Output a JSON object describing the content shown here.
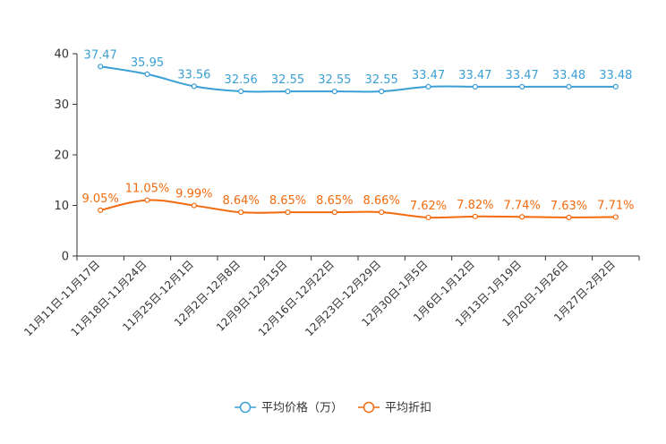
{
  "chart_data": {
    "type": "line",
    "categories": [
      "11月11日-11月17日",
      "11月18日-11月24日",
      "11月25日-12月1日",
      "12月2日-12月8日",
      "12月9日-12月15日",
      "12月16日-12月22日",
      "12月23日-12月29日",
      "12月30日-1月5日",
      "1月6日-1月12日",
      "1月13日-1月19日",
      "1月20日-1月26日",
      "1月27日-2月2日"
    ],
    "series": [
      {
        "name": "平均价格（万）",
        "color": "#3a9fd4",
        "values": [
          37.47,
          35.95,
          33.56,
          32.56,
          32.55,
          32.55,
          32.55,
          33.47,
          33.47,
          33.47,
          33.48,
          33.48
        ],
        "labels": [
          "37.47",
          "35.95",
          "33.56",
          "32.56",
          "32.55",
          "32.55",
          "32.55",
          "33.47",
          "33.47",
          "33.47",
          "33.48",
          "33.48"
        ]
      },
      {
        "name": "平均折扣",
        "color": "#f26b0f",
        "values": [
          9.05,
          11.05,
          9.99,
          8.64,
          8.65,
          8.65,
          8.66,
          7.62,
          7.82,
          7.74,
          7.63,
          7.71
        ],
        "labels": [
          "9.05%",
          "11.05%",
          "9.99%",
          "8.64%",
          "8.65%",
          "8.65%",
          "8.66%",
          "7.62%",
          "7.82%",
          "7.74%",
          "7.63%",
          "7.71%"
        ]
      }
    ],
    "yticks": [
      0,
      10,
      20,
      30,
      40
    ],
    "ylim": [
      0,
      40
    ],
    "title": "",
    "xlabel": "",
    "ylabel": "",
    "legend_position": "bottom-center"
  }
}
